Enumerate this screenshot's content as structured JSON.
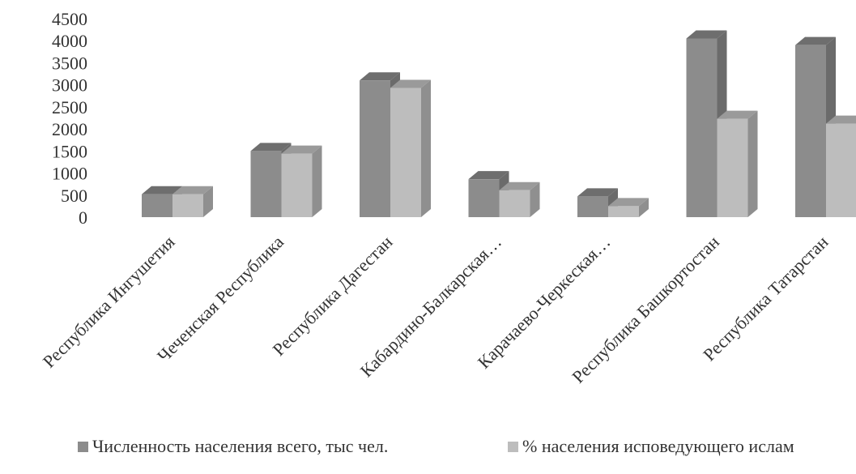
{
  "colors": {
    "series1_front": "#8c8c8c",
    "series1_side": "#6b6b6b",
    "series1_top": "#6e6e6e",
    "series2_front": "#bdbdbd",
    "series2_side": "#8f8f8f",
    "series2_top": "#9a9a9a"
  },
  "chart_data": {
    "type": "bar",
    "style": "3d-clustered-column",
    "categories": [
      "Республика Ингушетия",
      "Чеченская Республика",
      "Республика Дагестан",
      "Кабардино-Балкарская…",
      "Карачаево-Черкеская…",
      "Республика Башкортостан",
      "Республика Татарстан"
    ],
    "series": [
      {
        "name": "Численность населения всего, тыс чел.",
        "values": [
          520,
          1500,
          3100,
          860,
          470,
          4050,
          3900
        ]
      },
      {
        "name": "% населения исповедующего ислам",
        "values": [
          520,
          1440,
          2930,
          610,
          250,
          2230,
          2120
        ]
      }
    ],
    "ylim": [
      0,
      4500
    ],
    "yticks": [
      "4500",
      "4000",
      "3500",
      "3000",
      "2500",
      "2000",
      "1500",
      "1000",
      "500",
      "0"
    ],
    "grid": false,
    "legend_position": "bottom"
  }
}
